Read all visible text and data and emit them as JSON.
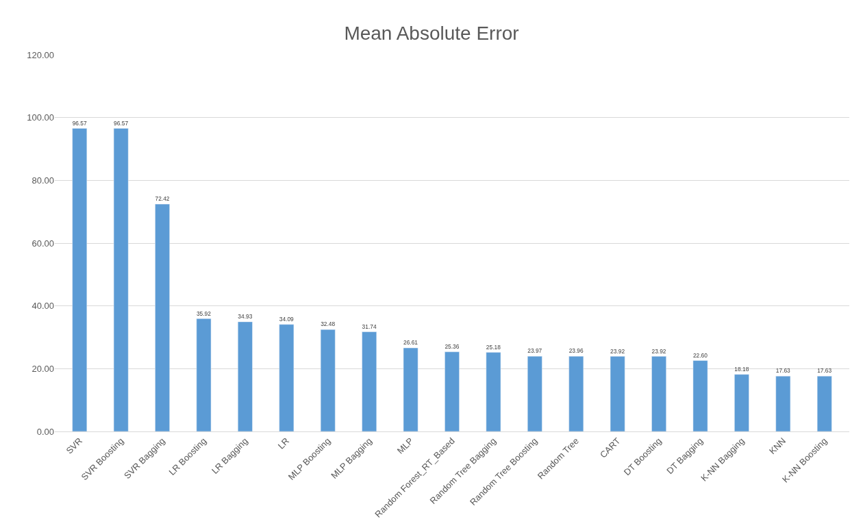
{
  "chart_data": {
    "type": "bar",
    "title": "Mean Absolute Error",
    "categories": [
      "SVR",
      "SVR Boosting",
      "SVR Bagging",
      "LR Boosting",
      "LR Bagging",
      "LR",
      "MLP Boosting",
      "MLP Bagging",
      "MLP",
      "Random Forest_RT_Based",
      "Random Tree Bagging",
      "Random Tree Boosting",
      "Random Tree",
      "CART",
      "DT Boosting",
      "DT Bagging",
      "K-NN Bagging",
      "KNN",
      "K-NN Boosting"
    ],
    "values": [
      96.57,
      96.57,
      72.42,
      35.92,
      34.93,
      34.09,
      32.48,
      31.74,
      26.61,
      25.36,
      25.18,
      23.97,
      23.96,
      23.92,
      23.92,
      22.6,
      18.18,
      17.63,
      17.63
    ],
    "value_labels": [
      "96.57",
      "96.57",
      "72.42",
      "35.92",
      "34.93",
      "34.09",
      "32.48",
      "31.74",
      "26.61",
      "25.36",
      "25.18",
      "23.97",
      "23.96",
      "23.92",
      "23.92",
      "22.60",
      "18.18",
      "17.63",
      "17.63"
    ],
    "color": "#5b9bd5",
    "ylim": [
      0,
      120
    ],
    "yticks": [
      {
        "value": 0,
        "label": "0.00"
      },
      {
        "value": 20,
        "label": "20.00"
      },
      {
        "value": 40,
        "label": "40.00"
      },
      {
        "value": 60,
        "label": "60.00"
      },
      {
        "value": 80,
        "label": "80.00"
      },
      {
        "value": 100,
        "label": "100.00"
      },
      {
        "value": 120,
        "label": "120.00"
      }
    ],
    "grid": "y"
  }
}
